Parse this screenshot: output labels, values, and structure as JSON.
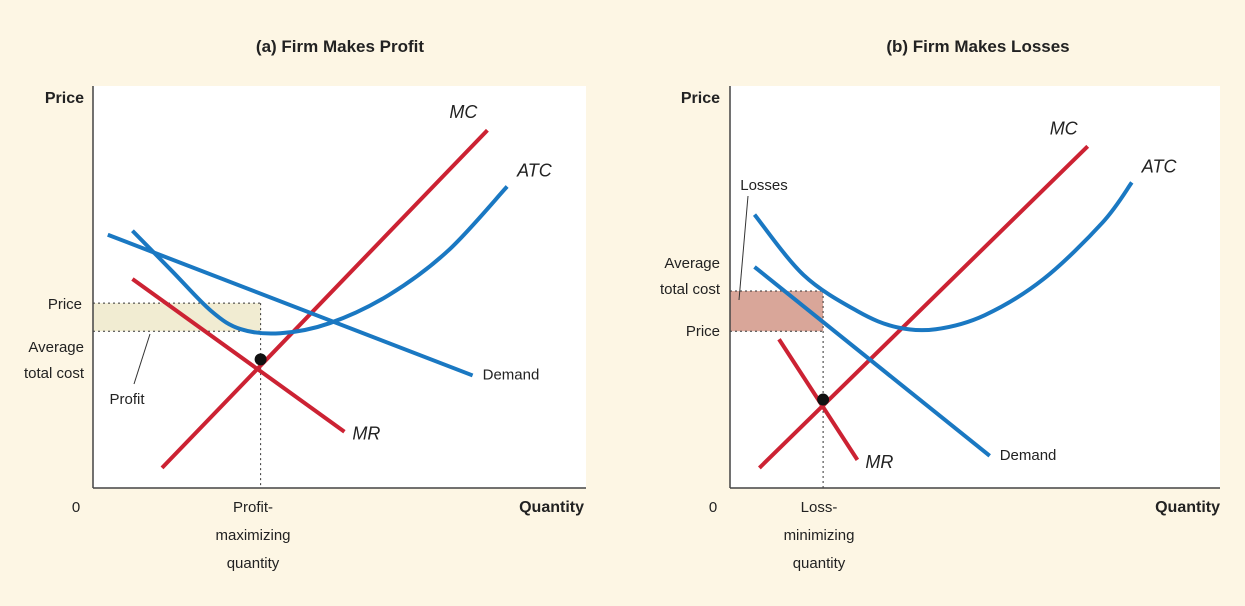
{
  "chart_data": [
    {
      "type": "line",
      "title": "(a) Firm Makes Profit",
      "ylabel": "Price",
      "xlabel": "Quantity",
      "origin_label": "0",
      "x_tick_label": [
        "Profit-",
        "maximizing",
        "quantity"
      ],
      "y_tick_labels": {
        "price": "Price",
        "atc": [
          "Average",
          "total cost"
        ]
      },
      "annotation": "Profit",
      "shade_color": "#f1ecd2",
      "xlim": [
        0,
        10
      ],
      "ylim": [
        0,
        10
      ],
      "guide": {
        "q": 3.4,
        "price": 4.6,
        "atc": 3.9,
        "mc_mr_cross": 3.2
      },
      "series": [
        {
          "name": "MC",
          "color": "#cc2233",
          "x": [
            1.4,
            8.0
          ],
          "y": [
            0.5,
            8.9
          ]
        },
        {
          "name": "ATC",
          "color": "#1a78c2",
          "x": [
            0.8,
            1.6,
            2.4,
            3.0,
            3.8,
            4.8,
            6.0,
            7.2,
            8.4
          ],
          "y": [
            6.4,
            5.4,
            4.4,
            3.95,
            3.85,
            4.1,
            4.8,
            5.9,
            7.5
          ]
        },
        {
          "name": "Demand",
          "color": "#1a78c2",
          "x": [
            0.3,
            7.7
          ],
          "y": [
            6.3,
            2.8
          ]
        },
        {
          "name": "MR",
          "color": "#cc2233",
          "x": [
            0.8,
            5.1
          ],
          "y": [
            5.2,
            1.4
          ]
        }
      ]
    },
    {
      "type": "line",
      "title": "(b) Firm Makes Losses",
      "ylabel": "Price",
      "xlabel": "Quantity",
      "origin_label": "0",
      "x_tick_label": [
        "Loss-",
        "minimizing",
        "quantity"
      ],
      "y_tick_labels": {
        "atc": [
          "Average",
          "total cost"
        ],
        "price": "Price"
      },
      "annotation": "Losses",
      "shade_color": "#d9a699",
      "xlim": [
        0,
        10
      ],
      "ylim": [
        0,
        10
      ],
      "guide": {
        "q": 1.9,
        "price": 3.9,
        "atc": 4.9,
        "mc_mr_cross": 2.2
      },
      "series": [
        {
          "name": "MC",
          "color": "#cc2233",
          "x": [
            0.6,
            7.3
          ],
          "y": [
            0.5,
            8.5
          ]
        },
        {
          "name": "ATC",
          "color": "#1a78c2",
          "x": [
            0.5,
            1.5,
            2.6,
            3.4,
            4.2,
            5.2,
            6.4,
            7.6,
            8.2
          ],
          "y": [
            6.8,
            5.3,
            4.4,
            4.0,
            3.95,
            4.3,
            5.2,
            6.6,
            7.6
          ]
        },
        {
          "name": "Demand",
          "color": "#1a78c2",
          "x": [
            0.5,
            5.3
          ],
          "y": [
            5.5,
            0.8
          ]
        },
        {
          "name": "MR",
          "color": "#cc2233",
          "x": [
            1.0,
            2.6
          ],
          "y": [
            3.7,
            0.7
          ]
        }
      ]
    }
  ]
}
